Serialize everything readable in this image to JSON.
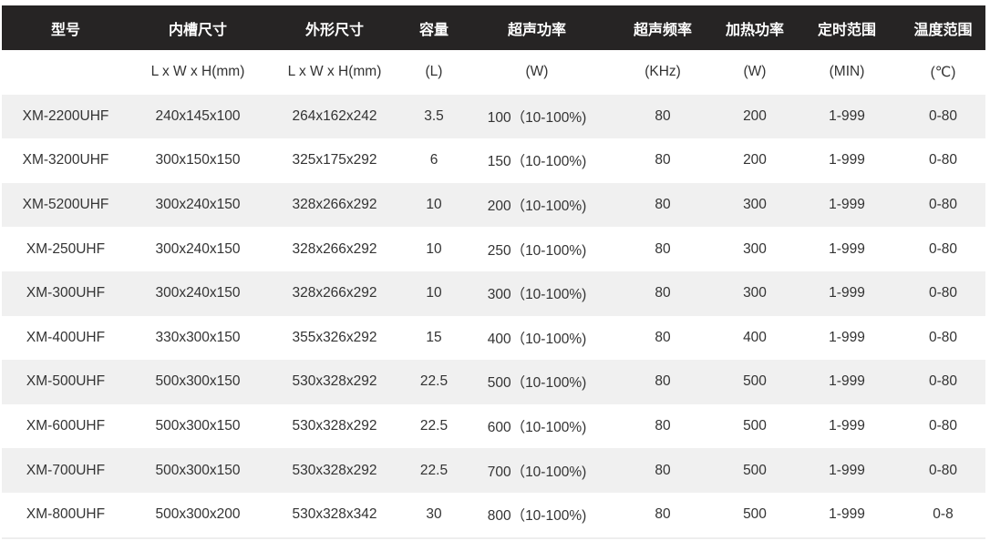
{
  "headers": [
    "型号",
    "内槽尺寸",
    "外形尺寸",
    "容量",
    "超声功率",
    "超声频率",
    "加热功率",
    "定时范围",
    "温度范围"
  ],
  "units": [
    "",
    "L x W x H(mm)",
    "L x W x H(mm)",
    "(L)",
    "(W)",
    "(KHz)",
    "(W)",
    "(MIN)",
    "(℃)"
  ],
  "rows": [
    [
      "XM-2200UHF",
      "240x145x100",
      "264x162x242",
      "3.5",
      "100（10-100%)",
      "80",
      "200",
      "1-999",
      "0-80"
    ],
    [
      "XM-3200UHF",
      "300x150x150",
      "325x175x292",
      "6",
      "150（10-100%)",
      "80",
      "200",
      "1-999",
      "0-80"
    ],
    [
      "XM-5200UHF",
      "300x240x150",
      "328x266x292",
      "10",
      "200（10-100%)",
      "80",
      "300",
      "1-999",
      "0-80"
    ],
    [
      "XM-250UHF",
      "300x240x150",
      "328x266x292",
      "10",
      "250（10-100%)",
      "80",
      "300",
      "1-999",
      "0-80"
    ],
    [
      "XM-300UHF",
      "300x240x150",
      "328x266x292",
      "10",
      "300（10-100%)",
      "80",
      "300",
      "1-999",
      "0-80"
    ],
    [
      "XM-400UHF",
      "330x300x150",
      "355x326x292",
      "15",
      "400（10-100%)",
      "80",
      "400",
      "1-999",
      "0-80"
    ],
    [
      "XM-500UHF",
      "500x300x150",
      "530x328x292",
      "22.5",
      "500（10-100%)",
      "80",
      "500",
      "1-999",
      "0-80"
    ],
    [
      "XM-600UHF",
      "500x300x150",
      "530x328x292",
      "22.5",
      "600（10-100%)",
      "80",
      "500",
      "1-999",
      "0-80"
    ],
    [
      "XM-700UHF",
      "500x300x150",
      "530x328x292",
      "22.5",
      "700（10-100%)",
      "80",
      "500",
      "1-999",
      "0-80"
    ],
    [
      "XM-800UHF",
      "500x300x200",
      "530x328x342",
      "30",
      "800（10-100%)",
      "80",
      "500",
      "1-999",
      "0-8"
    ]
  ],
  "colors": {
    "header_bg": "#262424",
    "alt_row_bg": "#f0f0f0",
    "text": "#333333"
  }
}
